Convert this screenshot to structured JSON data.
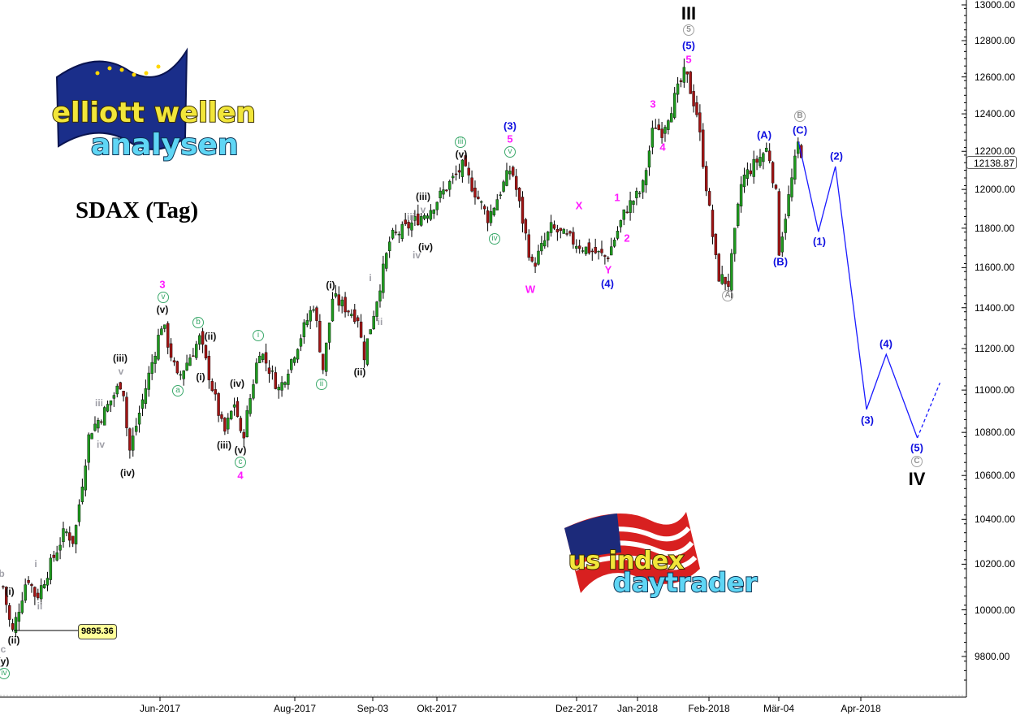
{
  "chart_data": {
    "type": "candlestick",
    "title": "SDAX (Tag)",
    "y_scale": "log",
    "ylim": [
      9650,
      13050
    ],
    "y_ticks": [
      "13000.00",
      "12800.00",
      "12600.00",
      "12400.00",
      "12200.00",
      "12000.00",
      "11800.00",
      "11600.00",
      "11400.00",
      "11200.00",
      "11000.00",
      "10800.00",
      "10600.00",
      "10400.00",
      "10200.00",
      "10000.00",
      "9800.00"
    ],
    "x_ticks": [
      {
        "label": "Jun-2017",
        "date": "2017-06-01"
      },
      {
        "label": "Aug-2017",
        "date": "2017-08-01"
      },
      {
        "label": "Sep-03",
        "date": "2017-09-03"
      },
      {
        "label": "Okt-2017",
        "date": "2017-10-02"
      },
      {
        "label": "Dez-2017",
        "date": "2017-12-01"
      },
      {
        "label": "Jan-2018",
        "date": "2018-01-02"
      },
      {
        "label": "Feb-2018",
        "date": "2018-02-01"
      },
      {
        "label": "Mär-04",
        "date": "2018-03-05"
      },
      {
        "label": "Apr-2018",
        "date": "2018-04-03"
      }
    ],
    "price_pivots": [
      [
        "2017-03-22",
        10100
      ],
      [
        "2017-03-26",
        9895
      ],
      [
        "2017-04-02",
        10150
      ],
      [
        "2017-04-06",
        10050
      ],
      [
        "2017-04-19",
        10350
      ],
      [
        "2017-04-23",
        10300
      ],
      [
        "2017-04-30",
        10800
      ],
      [
        "2017-05-07",
        10900
      ],
      [
        "2017-05-15",
        11050
      ],
      [
        "2017-05-18",
        10700
      ],
      [
        "2017-06-02",
        11330
      ],
      [
        "2017-06-09",
        11050
      ],
      [
        "2017-06-19",
        11250
      ],
      [
        "2017-06-30",
        10790
      ],
      [
        "2017-07-05",
        10950
      ],
      [
        "2017-07-08",
        10750
      ],
      [
        "2017-07-16",
        11200
      ],
      [
        "2017-07-25",
        11000
      ],
      [
        "2017-08-09",
        11420
      ],
      [
        "2017-08-13",
        11100
      ],
      [
        "2017-08-17",
        11450
      ],
      [
        "2017-08-28",
        11350
      ],
      [
        "2017-08-30",
        11150
      ],
      [
        "2017-09-11",
        11750
      ],
      [
        "2017-09-18",
        11800
      ],
      [
        "2017-09-29",
        11900
      ],
      [
        "2017-10-13",
        12120
      ],
      [
        "2017-10-24",
        11850
      ],
      [
        "2017-11-03",
        12120
      ],
      [
        "2017-11-12",
        11600
      ],
      [
        "2017-11-20",
        11800
      ],
      [
        "2017-12-05",
        11700
      ],
      [
        "2017-12-17",
        11650
      ],
      [
        "2017-12-27",
        11900
      ],
      [
        "2018-01-04",
        12000
      ],
      [
        "2018-01-09",
        12350
      ],
      [
        "2018-01-12",
        12300
      ],
      [
        "2018-01-22",
        12630
      ],
      [
        "2018-01-27",
        12400
      ],
      [
        "2018-02-05",
        11560
      ],
      [
        "2018-02-10",
        11520
      ],
      [
        "2018-02-16",
        12050
      ],
      [
        "2018-02-28",
        12220
      ],
      [
        "2018-03-04",
        11950
      ],
      [
        "2018-03-05",
        11680
      ],
      [
        "2018-03-12",
        12250
      ],
      [
        "2018-03-14",
        12138.87
      ]
    ],
    "last_price": "12138.87",
    "marked_low": "9895.36",
    "projection": {
      "color": "#1a1aff",
      "points": [
        [
          "2018-03-12",
          12250
        ],
        [
          "2018-03-19",
          11782
        ],
        [
          "2018-03-25",
          12120
        ],
        [
          "2018-04-05",
          10908
        ],
        [
          "2018-04-12",
          11172
        ],
        [
          "2018-04-23",
          10774
        ]
      ],
      "dashed_to": [
        "2018-05-01",
        11035
      ]
    },
    "colors": {
      "up": "#1e9a1e",
      "down": "#a01414",
      "wave_minute": "#3aa86a",
      "wave_intermediate": "#1010e0",
      "wave_minor": "#ff1aff",
      "wave_primary": "#909090"
    },
    "wave_labels": {
      "l0": "b",
      "l1": "(i)",
      "l2": "i",
      "l3": "ii",
      "l4": "(ii)",
      "l5": "c",
      "l6": "(y)",
      "l7": "iv",
      "l8": "iii",
      "l9": "iv",
      "l10": "v",
      "l11": "(iii)",
      "l12": "(iv)",
      "l13": "3",
      "l14": "v",
      "l15": "(v)",
      "l16": "a",
      "l17": "b",
      "l18": "(i)",
      "l19": "(ii)",
      "l20": "(iii)",
      "l21": "(iv)",
      "l22": "(v)",
      "l23": "c",
      "l24": "4",
      "l25": "i",
      "l26": "ii",
      "l27": "(i)",
      "l28": "(ii)",
      "l29": "i",
      "l30": "ii",
      "l31": "iii",
      "l32": "iv",
      "l33": "v",
      "l34": "(iii)",
      "l35": "(iv)",
      "l36": "iii",
      "l37": "(v)",
      "l38": "(3)",
      "l39": "5",
      "l40": "v",
      "l41": "iv",
      "l42": "W",
      "l43": "X",
      "l44": "Y",
      "l45": "(4)",
      "l46": "1",
      "l47": "2",
      "l48": "3",
      "l49": "4",
      "l50": "III",
      "l51": "5",
      "l52": "(5)",
      "l53": "5",
      "l54": "A",
      "l55": "(A)",
      "l56": "(B)",
      "l57": "B",
      "l58": "(C)",
      "l59": "(1)",
      "l60": "(2)",
      "l61": "(3)",
      "l62": "(4)",
      "l63": "(5)",
      "l64": "C",
      "l65": "IV"
    }
  },
  "logos": {
    "top_left": {
      "line1": "elliott wellen",
      "line2": "analysen"
    },
    "bottom": {
      "line1": "us index",
      "line2": "daytrader"
    }
  }
}
